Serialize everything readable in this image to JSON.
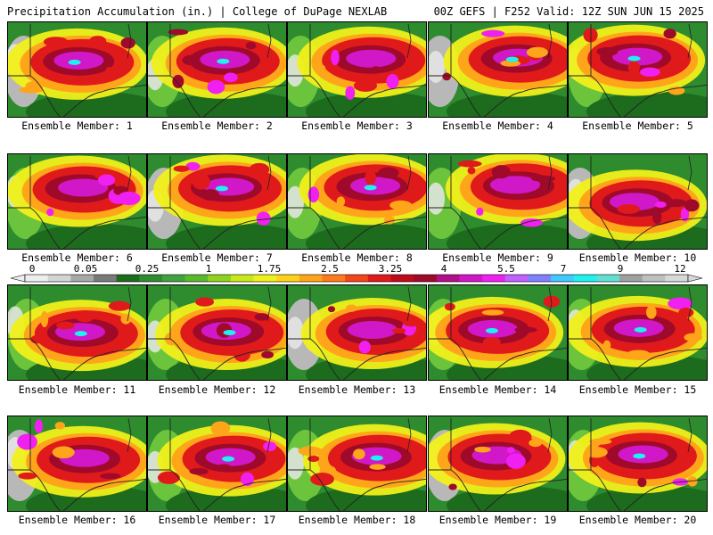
{
  "header": {
    "title_left": "Precipitation Accumulation (in.) | College of DuPage NEXLAB",
    "title_right": "00Z GEFS | F252 Valid: 12Z SUN JUN 15 2025"
  },
  "panels": [
    {
      "caption": "Ensemble Member: 1"
    },
    {
      "caption": "Ensemble Member: 2"
    },
    {
      "caption": "Ensemble Member: 3"
    },
    {
      "caption": "Ensemble Member: 4"
    },
    {
      "caption": "Ensemble Member: 5"
    },
    {
      "caption": "Ensemble Member: 6"
    },
    {
      "caption": "Ensemble Member: 7"
    },
    {
      "caption": "Ensemble Member: 8"
    },
    {
      "caption": "Ensemble Member: 9"
    },
    {
      "caption": "Ensemble Member: 10"
    },
    {
      "caption": "Ensemble Member: 11"
    },
    {
      "caption": "Ensemble Member: 12"
    },
    {
      "caption": "Ensemble Member: 13"
    },
    {
      "caption": "Ensemble Member: 14"
    },
    {
      "caption": "Ensemble Member: 15"
    },
    {
      "caption": "Ensemble Member: 16"
    },
    {
      "caption": "Ensemble Member: 17"
    },
    {
      "caption": "Ensemble Member: 18"
    },
    {
      "caption": "Ensemble Member: 19"
    },
    {
      "caption": "Ensemble Member: 20"
    }
  ],
  "colorbar": {
    "labels": [
      "0",
      "0.05",
      "0.25",
      "1",
      "1.75",
      "2.5",
      "3.25",
      "4",
      "5.5",
      "7",
      "9",
      "12"
    ],
    "colors": [
      "#eeeeee",
      "#d4d4d4",
      "#a8a8a8",
      "#7a7a7a",
      "#1d6b1d",
      "#2e8b2e",
      "#3fa23f",
      "#5ab82e",
      "#8fd21f",
      "#c8e81a",
      "#f0f01a",
      "#ffd21a",
      "#ffa51a",
      "#ff7a1a",
      "#f5451a",
      "#e01a1a",
      "#c00a1a",
      "#a00a2a",
      "#b0108a",
      "#d018c8",
      "#f020f0",
      "#c060ff",
      "#8080ff",
      "#40c8ff",
      "#20f0f0",
      "#60e0d0",
      "#a0a0a0",
      "#c0c0c0",
      "#d8d8d8"
    ]
  }
}
